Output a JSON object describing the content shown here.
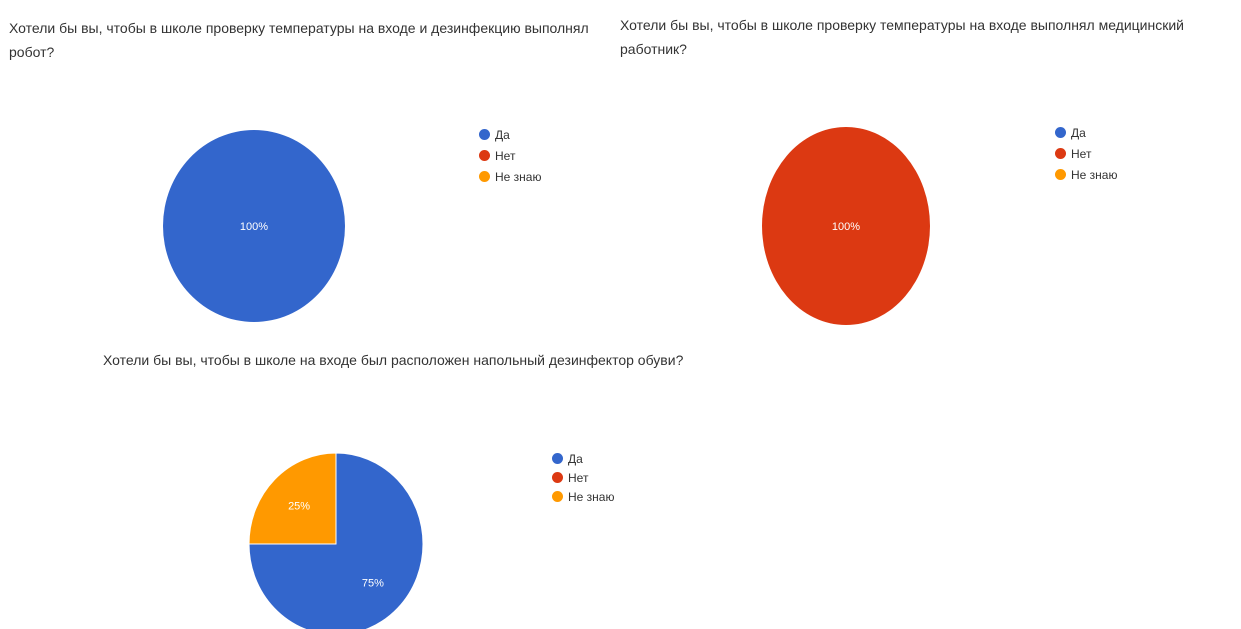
{
  "colors": {
    "yes": "#3366cc",
    "no": "#dc3912",
    "dont_know": "#ff9900"
  },
  "chart_data": [
    {
      "type": "pie",
      "title": "Хотели бы вы, чтобы в школе проверку температуры на входе и дезинфекцию выполнял робот?",
      "categories": [
        "Да",
        "Нет",
        "Не знаю"
      ],
      "values": [
        100,
        0,
        0
      ],
      "data_labels": [
        "100%",
        "",
        ""
      ],
      "legend": "right"
    },
    {
      "type": "pie",
      "title": "Хотели бы вы, чтобы в школе проверку температуры на входе выполнял медицинский работник?",
      "categories": [
        "Да",
        "Нет",
        "Не знаю"
      ],
      "values": [
        0,
        100,
        0
      ],
      "data_labels": [
        "",
        "100%",
        ""
      ],
      "legend": "right"
    },
    {
      "type": "pie",
      "title": "Хотели бы вы, чтобы в школе на входе был расположен напольный дезинфектор обуви?",
      "categories": [
        "Да",
        "Нет",
        "Не знаю"
      ],
      "values": [
        75,
        0,
        25
      ],
      "data_labels": [
        "75%",
        "",
        "25%"
      ],
      "legend": "right"
    }
  ]
}
